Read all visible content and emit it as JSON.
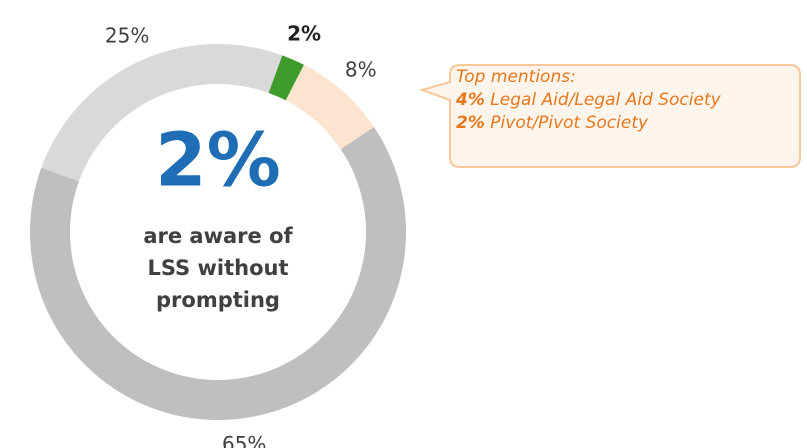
{
  "chart_data": {
    "type": "pie",
    "values": [
      2,
      8,
      65,
      25
    ],
    "value_labels": [
      "2%",
      "8%",
      "65%",
      "25%"
    ],
    "colors": [
      "#3f9b2c",
      "#fde4cf",
      "#bfbfbf",
      "#d9d9d9"
    ],
    "center_value": "2%",
    "center_text": [
      "are aware of",
      "LSS without",
      "prompting"
    ],
    "callout": {
      "title": "Top mentions:",
      "items": [
        {
          "value": "4%",
          "label": "Legal Aid/Legal Aid Society"
        },
        {
          "value": "2%",
          "label": "Pivot/Pivot Society"
        }
      ]
    }
  }
}
